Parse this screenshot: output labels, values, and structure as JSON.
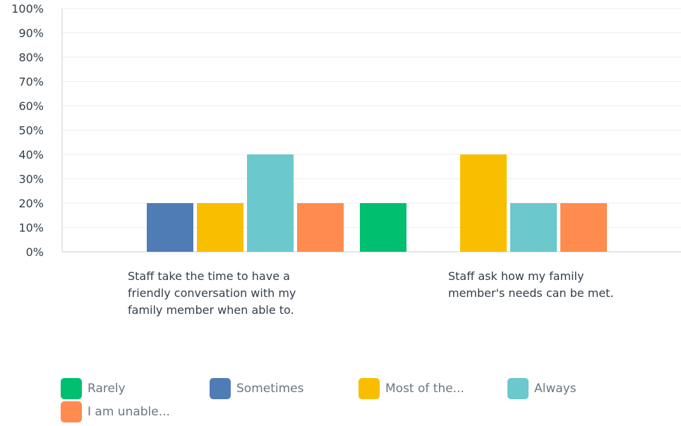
{
  "chart_data": {
    "type": "bar",
    "categories": [
      "Staff take the time to have a friendly conversation with my family member when able to.",
      "Staff ask how my family member's needs can be met."
    ],
    "category_lines": [
      [
        "Staff take the time to have a",
        "friendly conversation with my",
        "family member when able to."
      ],
      [
        "Staff ask how my family",
        "member's needs can be met."
      ]
    ],
    "series": [
      {
        "name": "Rarely",
        "color": "#00bf6f",
        "values": [
          0,
          20
        ]
      },
      {
        "name": "Sometimes",
        "color": "#507cb6",
        "values": [
          20,
          0
        ]
      },
      {
        "name": "Most of the...",
        "color": "#f9be00",
        "values": [
          20,
          40
        ]
      },
      {
        "name": "Always",
        "color": "#6bc8cd",
        "values": [
          40,
          20
        ]
      },
      {
        "name": "I am unable...",
        "color": "#ff8b4f",
        "values": [
          20,
          20
        ]
      }
    ],
    "yticks": [
      "0%",
      "10%",
      "20%",
      "30%",
      "40%",
      "50%",
      "60%",
      "70%",
      "80%",
      "90%",
      "100%"
    ],
    "ylim": [
      0,
      100
    ],
    "grid": true,
    "legend_position": "bottom",
    "title": "",
    "xlabel": "",
    "ylabel": ""
  }
}
